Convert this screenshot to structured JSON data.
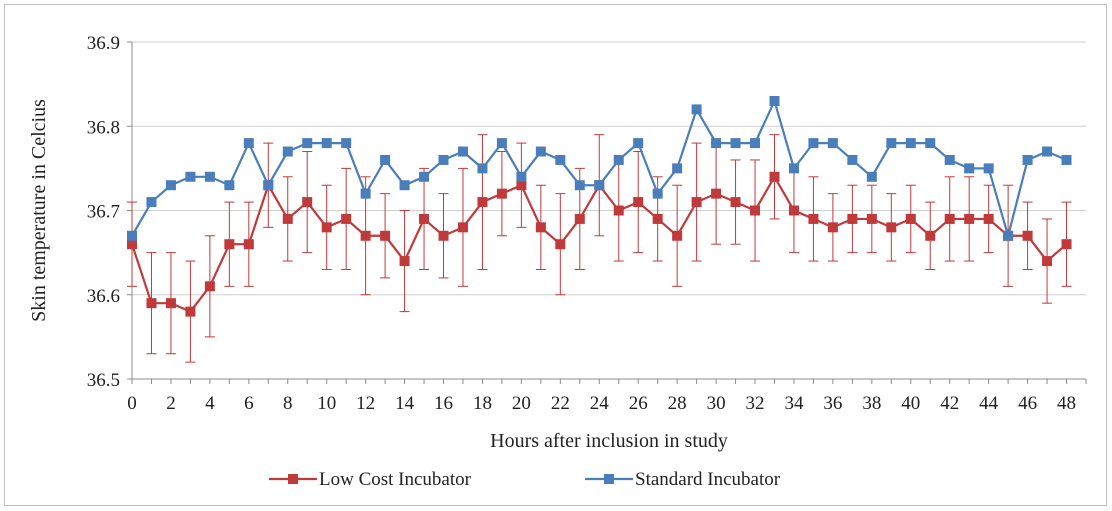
{
  "chart_data": {
    "type": "line",
    "xlabel": "Hours after inclusion in study",
    "ylabel": "Skin temperature in Celcius",
    "ylim": [
      36.5,
      36.9
    ],
    "yticks": [
      "36.5",
      "36.6",
      "36.7",
      "36.8",
      "36.9"
    ],
    "xlim": [
      0,
      49
    ],
    "xticks": [
      "0",
      "2",
      "4",
      "6",
      "8",
      "10",
      "12",
      "14",
      "16",
      "18",
      "20",
      "22",
      "24",
      "26",
      "28",
      "30",
      "32",
      "34",
      "36",
      "38",
      "40",
      "42",
      "44",
      "46",
      "48"
    ],
    "grid": true,
    "legend_position": "bottom",
    "x": [
      0,
      1,
      2,
      3,
      4,
      5,
      6,
      7,
      8,
      9,
      10,
      11,
      12,
      13,
      14,
      15,
      16,
      17,
      18,
      19,
      20,
      21,
      22,
      23,
      24,
      25,
      26,
      27,
      28,
      29,
      30,
      31,
      32,
      33,
      34,
      35,
      36,
      37,
      38,
      39,
      40,
      41,
      42,
      43,
      44,
      45,
      46,
      47,
      48
    ],
    "series": [
      {
        "name": "Low Cost Incubator",
        "color": "#c0393b",
        "marker": "square",
        "values": [
          36.66,
          36.59,
          36.59,
          36.58,
          36.61,
          36.66,
          36.66,
          36.73,
          36.69,
          36.71,
          36.68,
          36.69,
          36.67,
          36.67,
          36.64,
          36.69,
          36.67,
          36.68,
          36.71,
          36.72,
          36.73,
          36.68,
          36.66,
          36.69,
          36.73,
          36.7,
          36.71,
          36.69,
          36.67,
          36.71,
          36.72,
          36.71,
          36.7,
          36.74,
          36.7,
          36.69,
          36.68,
          36.69,
          36.69,
          36.68,
          36.69,
          36.67,
          36.69,
          36.69,
          36.69,
          36.67,
          36.67,
          36.64,
          36.66
        ],
        "error": [
          0.05,
          0.06,
          0.06,
          0.06,
          0.06,
          0.05,
          0.05,
          0.05,
          0.05,
          0.06,
          0.05,
          0.06,
          0.07,
          0.05,
          0.06,
          0.06,
          0.05,
          0.07,
          0.08,
          0.05,
          0.05,
          0.05,
          0.06,
          0.06,
          0.06,
          0.06,
          0.06,
          0.05,
          0.06,
          0.07,
          0.06,
          0.05,
          0.06,
          0.05,
          0.05,
          0.05,
          0.04,
          0.04,
          0.04,
          0.04,
          0.04,
          0.04,
          0.05,
          0.05,
          0.04,
          0.06,
          0.04,
          0.05,
          0.05
        ]
      },
      {
        "name": "Standard Incubator",
        "color": "#4a7ebb",
        "marker": "square",
        "values": [
          36.67,
          36.71,
          36.73,
          36.74,
          36.74,
          36.73,
          36.78,
          36.73,
          36.77,
          36.78,
          36.78,
          36.78,
          36.72,
          36.76,
          36.73,
          36.74,
          36.76,
          36.77,
          36.75,
          36.78,
          36.74,
          36.77,
          36.76,
          36.73,
          36.73,
          36.76,
          36.78,
          36.72,
          36.75,
          36.82,
          36.78,
          36.78,
          36.78,
          36.83,
          36.75,
          36.78,
          36.78,
          36.76,
          36.74,
          36.78,
          36.78,
          36.78,
          36.76,
          36.75,
          36.75,
          36.67,
          36.76,
          36.77,
          36.76
        ]
      }
    ]
  }
}
